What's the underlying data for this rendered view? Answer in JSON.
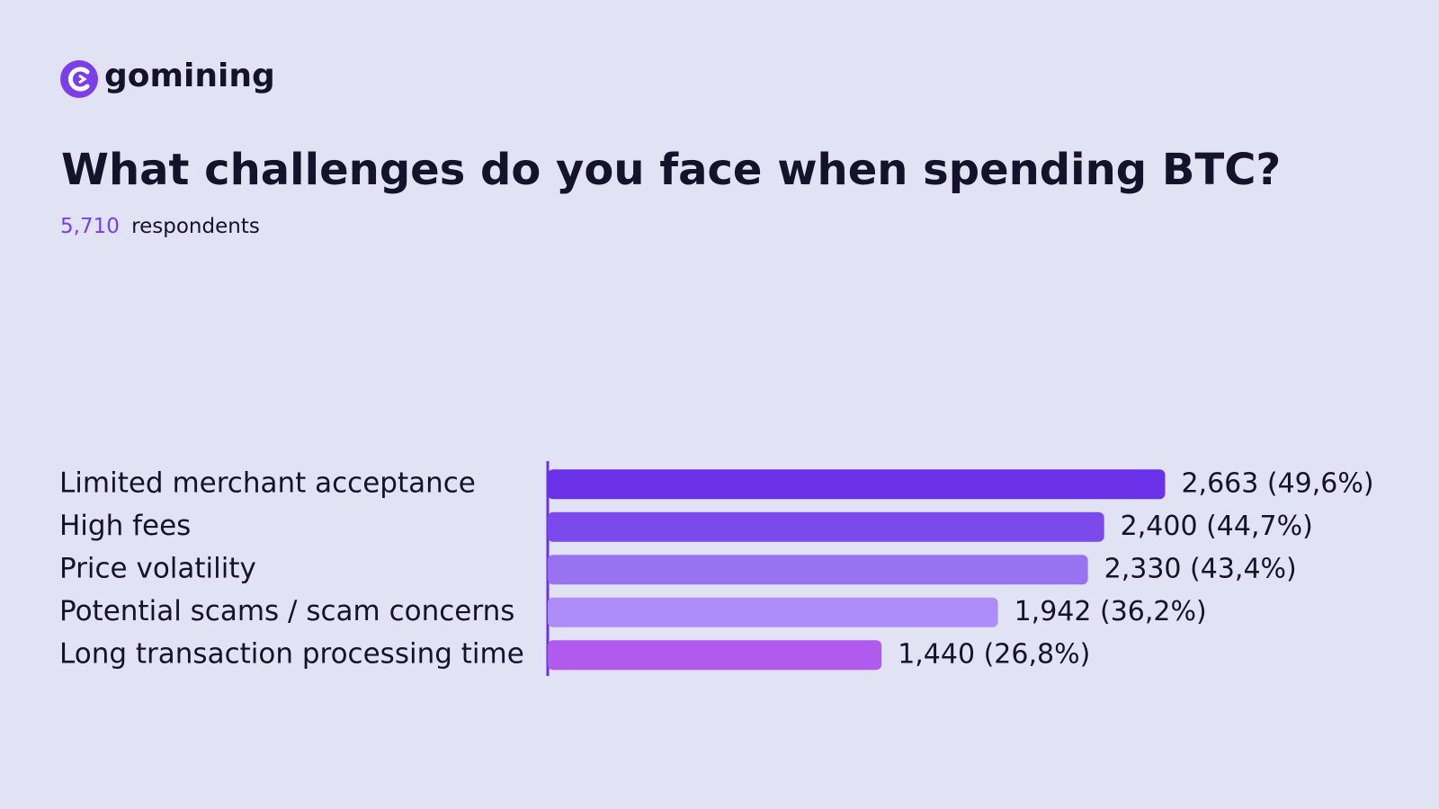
{
  "brand": "gomining",
  "chart_data": {
    "type": "hbar",
    "title": "What challenges do you face when spending BTC?",
    "respondents_count": "5,710",
    "subtitle": "respondents",
    "categories": [
      "Limited merchant acceptance",
      "High fees",
      "Price volatility",
      "Potential scams / scam concerns",
      "Long transaction processing time"
    ],
    "values": [
      2663,
      2400,
      2330,
      1942,
      1440
    ],
    "value_labels": [
      "2,663 (49,6%)",
      "2,400 (44,7%)",
      "2,330 (43,4%)",
      "1,942 (36,2%)",
      "1,440 (26,8%)"
    ],
    "colors": [
      "#6a31e8",
      "#7c4aec",
      "#9873f1",
      "#ad8ef9",
      "#b05bee"
    ],
    "xlim": [
      0,
      2700
    ]
  }
}
